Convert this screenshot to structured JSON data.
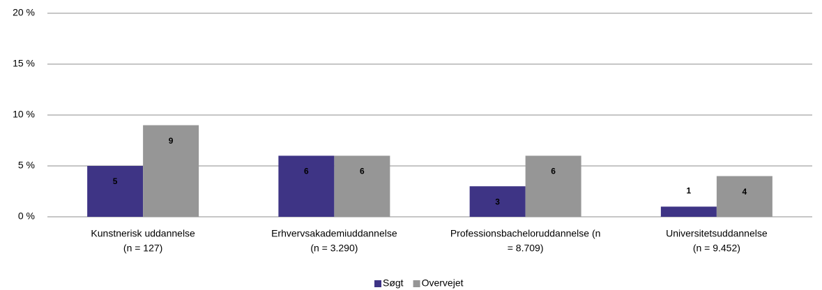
{
  "chart_data": {
    "type": "bar",
    "categories": [
      [
        "Kunstnerisk uddannelse",
        "(n = 127)"
      ],
      [
        "Erhvervsakademiuddannelse",
        "(n = 3.290)"
      ],
      [
        "Professionsbacheloruddannelse (n",
        "= 8.709)"
      ],
      [
        "Universitetsuddannelse",
        "(n = 9.452)"
      ]
    ],
    "series": [
      {
        "name": "Søgt",
        "color": "#3e3485",
        "values": [
          5,
          6,
          3,
          1
        ]
      },
      {
        "name": "Overvejet",
        "color": "#969696",
        "values": [
          9,
          6,
          6,
          4
        ]
      }
    ],
    "ylim": [
      0,
      20
    ],
    "yticks": [
      {
        "value": 0,
        "label": "0 %"
      },
      {
        "value": 5,
        "label": "5 %"
      },
      {
        "value": 10,
        "label": "10 %"
      },
      {
        "value": 15,
        "label": "15 %"
      },
      {
        "value": 20,
        "label": "20 %"
      }
    ],
    "grid": true,
    "legend": "bottom"
  }
}
